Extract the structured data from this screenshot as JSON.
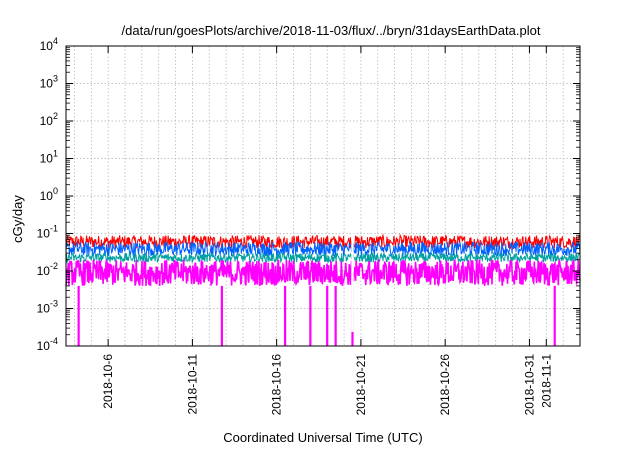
{
  "chart_data": {
    "type": "line",
    "title": "/data/run/goesPlots/archive/2018-11-03/flux/../bryn/31daysEarthData.plot",
    "xlabel": "Coordinated Universal Time (UTC)",
    "ylabel": "cGy/day",
    "yscale": "log",
    "ylim": [
      0.0001,
      10000
    ],
    "xlim": [
      "2018-10-03T12:00",
      "2018-11-03T00:00"
    ],
    "grid": true,
    "legend": "none",
    "ytick_values": [
      0.0001,
      0.001,
      0.01,
      0.1,
      1,
      10,
      100,
      1000,
      10000
    ],
    "ytick_labels": [
      {
        "base": "10",
        "exp": "-4"
      },
      {
        "base": "10",
        "exp": "-3"
      },
      {
        "base": "10",
        "exp": "-2"
      },
      {
        "base": "10",
        "exp": "-1"
      },
      {
        "base": "10",
        "exp": "0"
      },
      {
        "base": "10",
        "exp": "1"
      },
      {
        "base": "10",
        "exp": "2"
      },
      {
        "base": "10",
        "exp": "3"
      },
      {
        "base": "10",
        "exp": "4"
      }
    ],
    "xticks": [
      {
        "date": "2018-10-06",
        "label": "2018-10-6"
      },
      {
        "date": "2018-10-11",
        "label": "2018-10-11"
      },
      {
        "date": "2018-10-16",
        "label": "2018-10-16"
      },
      {
        "date": "2018-10-21",
        "label": "2018-10-21"
      },
      {
        "date": "2018-10-26",
        "label": "2018-10-26"
      },
      {
        "date": "2018-10-31",
        "label": "2018-10-31"
      },
      {
        "date": "2018-11-01",
        "label": "2018-11-1"
      }
    ],
    "series": [
      {
        "color": "#ff0000",
        "typical_low": 0.04,
        "typical_high": 0.09
      },
      {
        "color": "#0060ff",
        "typical_low": 0.025,
        "typical_high": 0.06
      },
      {
        "color": "#00a0a0",
        "typical_low": 0.017,
        "typical_high": 0.03
      },
      {
        "color": "#ff00ff",
        "typical_low": 0.004,
        "typical_high": 0.02,
        "dropouts": [
          "2018-10-04T06:00",
          "2018-10-12T18:00",
          "2018-10-16T12:00",
          "2018-10-18T00:00",
          "2018-10-19T00:00",
          "2018-10-19T12:00",
          "2018-10-20T12:00",
          "2018-11-01T12:00"
        ]
      }
    ],
    "data_gap": "2018-10-20T12:00"
  }
}
